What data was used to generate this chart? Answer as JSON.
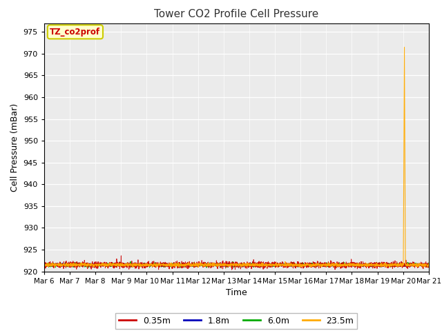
{
  "title": "Tower CO2 Profile Cell Pressure",
  "xlabel": "Time",
  "ylabel": "Cell Pressure (mBar)",
  "ylim": [
    920,
    977
  ],
  "yticks": [
    920,
    925,
    930,
    935,
    940,
    945,
    950,
    955,
    960,
    965,
    970,
    975
  ],
  "x_tick_labels": [
    "Mar 6",
    "Mar 7",
    "Mar 8",
    "Mar 9",
    "Mar 10",
    "Mar 11",
    "Mar 12",
    "Mar 13",
    "Mar 14",
    "Mar 15",
    "Mar 16",
    "Mar 17",
    "Mar 18",
    "Mar 19",
    "Mar 20",
    "Mar 21"
  ],
  "series_colors": [
    "#cc0000",
    "#0000bb",
    "#00aa00",
    "#ffaa00"
  ],
  "series_labels": [
    "0.35m",
    "1.8m",
    "6.0m",
    "23.5m"
  ],
  "fig_facecolor": "#ffffff",
  "plot_bg_color": "#ebebeb",
  "annotation_label": "TZ_co2prof",
  "annotation_color": "#cc0000",
  "annotation_bg": "#ffffcc",
  "annotation_edge": "#cccc00",
  "n_points": 3000,
  "base_pressure": 921.5,
  "noise_scale": 0.35
}
